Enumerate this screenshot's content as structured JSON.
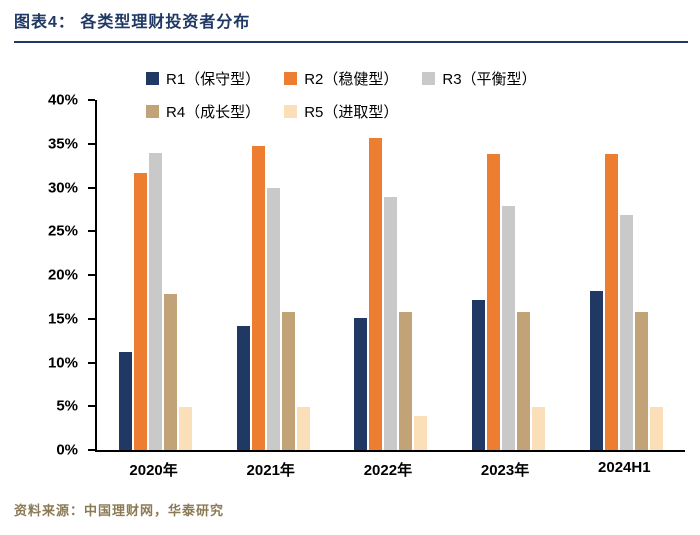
{
  "header": {
    "title": "图表4：  各类型理财投资者分布"
  },
  "footer": {
    "source": "资料来源：中国理财网，华泰研究"
  },
  "colors": {
    "accent_navy": "#1F3864",
    "axis_black": "#000000",
    "source_brown": "#8C7A55"
  },
  "chart_data": {
    "type": "bar",
    "title": "各类型理财投资者分布",
    "categories": [
      "2020年",
      "2021年",
      "2022年",
      "2023年",
      "2024H1"
    ],
    "series": [
      {
        "name": "R1（保守型）",
        "color": "#1F3864",
        "values": [
          11.2,
          14.2,
          15.1,
          17.2,
          18.2
        ]
      },
      {
        "name": "R2（稳健型）",
        "color": "#ED7D31",
        "values": [
          31.7,
          34.8,
          35.7,
          33.8,
          33.8
        ]
      },
      {
        "name": "R3（平衡型）",
        "color": "#C9C9C9",
        "values": [
          33.9,
          29.9,
          28.9,
          27.9,
          26.9
        ]
      },
      {
        "name": "R4（成长型）",
        "color": "#C2A277",
        "values": [
          17.8,
          15.8,
          15.8,
          15.8,
          15.8
        ]
      },
      {
        "name": "R5（进取型）",
        "color": "#FBDFB8",
        "values": [
          4.9,
          4.9,
          3.9,
          4.9,
          4.9
        ]
      }
    ],
    "xlabel": "",
    "ylabel": "",
    "ylim": [
      0,
      40
    ],
    "ytick_step": 5,
    "ytick_labels": [
      "0%",
      "5%",
      "10%",
      "15%",
      "20%",
      "25%",
      "30%",
      "35%",
      "40%"
    ],
    "grid": false,
    "legend_position": "top"
  }
}
